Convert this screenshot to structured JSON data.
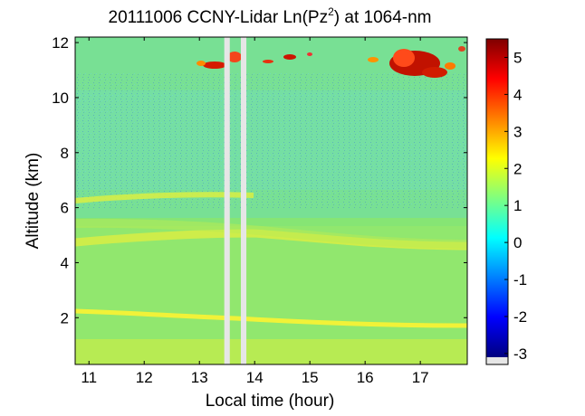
{
  "chart_data": {
    "type": "heatmap",
    "title_main": "20111006 CCNY-Lidar Ln(Pz",
    "title_sup": "2",
    "title_tail": ") at 1064-nm",
    "xlabel": "Local time (hour)",
    "ylabel": "Altitude (km)",
    "xlim": [
      10.75,
      17.85
    ],
    "ylim": [
      0.3,
      12.2
    ],
    "x_ticks": [
      "11",
      "12",
      "13",
      "14",
      "15",
      "16",
      "17"
    ],
    "x_tick_values": [
      11,
      12,
      13,
      14,
      15,
      16,
      17
    ],
    "y_ticks": [
      "2",
      "4",
      "6",
      "8",
      "10",
      "12"
    ],
    "y_tick_values": [
      2,
      4,
      6,
      8,
      10,
      12
    ],
    "colorbar": {
      "range": [
        -3.1,
        5.5
      ],
      "ticks": [
        "5",
        "4",
        "3",
        "2",
        "1",
        "0",
        "-1",
        "-2",
        "-3"
      ],
      "tick_values": [
        5,
        4,
        3,
        2,
        1,
        0,
        -1,
        -2,
        -3
      ],
      "colormap": "jet"
    },
    "data_gaps_hours": [
      [
        13.45,
        13.55
      ],
      [
        13.75,
        13.85
      ]
    ],
    "features": [
      {
        "kind": "aerosol-layer",
        "altitude_start_km": 2.2,
        "altitude_end_km": 1.8,
        "value": 2.2
      },
      {
        "kind": "aerosol-layer",
        "altitude_start_km": 4.6,
        "altitude_end_km": 4.3,
        "value": 2.0
      },
      {
        "kind": "aerosol-layer",
        "altitude_start_km": 6.3,
        "altitude_end_km": 6.1,
        "value": 1.6
      },
      {
        "kind": "cirrus",
        "x_range": [
          13.0,
          13.8
        ],
        "altitude_km": 11.3,
        "value": 5.0
      },
      {
        "kind": "cirrus",
        "x_range": [
          16.5,
          17.6
        ],
        "altitude_km": 11.3,
        "value": 5.2
      }
    ]
  }
}
